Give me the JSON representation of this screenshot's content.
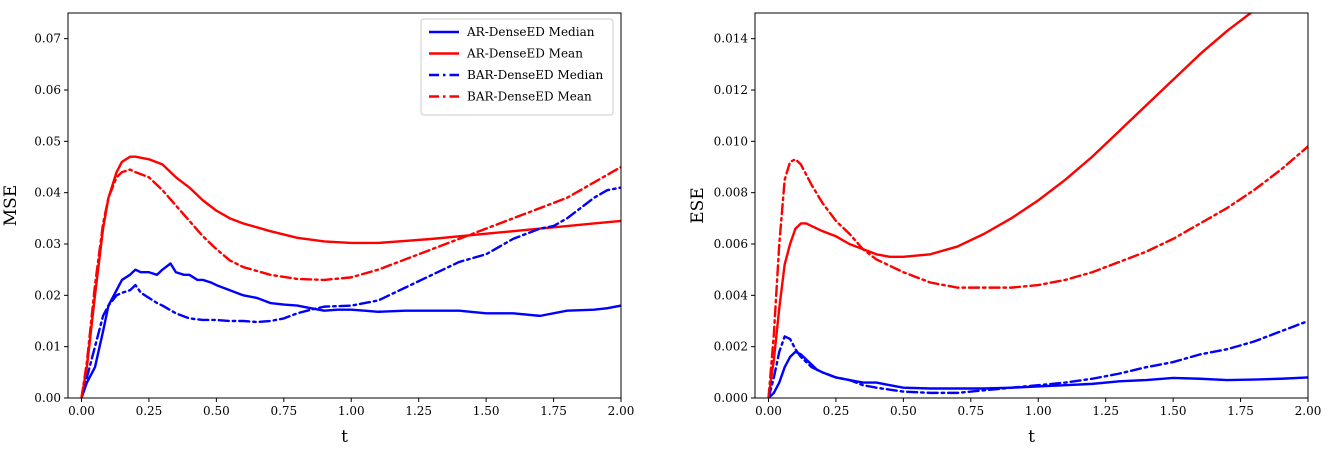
{
  "chart_data": [
    {
      "type": "line",
      "title": "",
      "xlabel": "t",
      "ylabel": "MSE",
      "xlim": [
        -0.05,
        2.0
      ],
      "ylim": [
        0.0,
        0.075
      ],
      "xticks": [
        "0.00",
        "0.25",
        "0.50",
        "0.75",
        "1.00",
        "1.25",
        "1.50",
        "1.75",
        "2.00"
      ],
      "yticks": [
        "0.00",
        "0.01",
        "0.02",
        "0.03",
        "0.04",
        "0.05",
        "0.06",
        "0.07"
      ],
      "legend_position": "top-right",
      "grid": false,
      "series": [
        {
          "name": "AR-DenseED Median",
          "color": "#0000ff",
          "style": "solid",
          "x": [
            0.0,
            0.02,
            0.05,
            0.08,
            0.1,
            0.13,
            0.15,
            0.18,
            0.2,
            0.22,
            0.25,
            0.28,
            0.3,
            0.33,
            0.35,
            0.38,
            0.4,
            0.43,
            0.45,
            0.48,
            0.5,
            0.55,
            0.6,
            0.65,
            0.7,
            0.75,
            0.8,
            0.85,
            0.9,
            0.95,
            1.0,
            1.05,
            1.1,
            1.2,
            1.3,
            1.4,
            1.5,
            1.6,
            1.7,
            1.8,
            1.9,
            1.95,
            2.0
          ],
          "y": [
            0.0,
            0.003,
            0.006,
            0.013,
            0.018,
            0.021,
            0.023,
            0.024,
            0.025,
            0.0245,
            0.0245,
            0.024,
            0.025,
            0.0262,
            0.0245,
            0.024,
            0.024,
            0.023,
            0.023,
            0.0225,
            0.022,
            0.021,
            0.02,
            0.0195,
            0.0185,
            0.0182,
            0.018,
            0.0175,
            0.017,
            0.0172,
            0.0172,
            0.017,
            0.0168,
            0.017,
            0.017,
            0.017,
            0.0165,
            0.0165,
            0.016,
            0.017,
            0.0172,
            0.0175,
            0.018
          ]
        },
        {
          "name": "AR-DenseED Mean",
          "color": "#ff0000",
          "style": "solid",
          "x": [
            0.0,
            0.02,
            0.05,
            0.08,
            0.1,
            0.13,
            0.15,
            0.18,
            0.2,
            0.25,
            0.3,
            0.35,
            0.4,
            0.45,
            0.5,
            0.55,
            0.6,
            0.7,
            0.8,
            0.9,
            1.0,
            1.1,
            1.2,
            1.3,
            1.4,
            1.5,
            1.6,
            1.7,
            1.8,
            1.9,
            2.0
          ],
          "y": [
            0.0,
            0.006,
            0.02,
            0.033,
            0.039,
            0.044,
            0.046,
            0.047,
            0.047,
            0.0465,
            0.0455,
            0.043,
            0.041,
            0.0385,
            0.0365,
            0.035,
            0.034,
            0.0325,
            0.0312,
            0.0305,
            0.0302,
            0.0302,
            0.0306,
            0.031,
            0.0315,
            0.032,
            0.0325,
            0.033,
            0.0335,
            0.034,
            0.0345
          ]
        },
        {
          "name": "BAR-DenseED Median",
          "color": "#0000ff",
          "style": "dashdot",
          "x": [
            0.0,
            0.02,
            0.05,
            0.08,
            0.1,
            0.13,
            0.15,
            0.18,
            0.2,
            0.22,
            0.25,
            0.28,
            0.3,
            0.35,
            0.4,
            0.45,
            0.5,
            0.55,
            0.6,
            0.65,
            0.7,
            0.75,
            0.8,
            0.85,
            0.9,
            1.0,
            1.1,
            1.2,
            1.3,
            1.4,
            1.5,
            1.6,
            1.7,
            1.75,
            1.8,
            1.85,
            1.9,
            1.95,
            2.0
          ],
          "y": [
            0.0,
            0.004,
            0.01,
            0.016,
            0.018,
            0.02,
            0.0205,
            0.021,
            0.022,
            0.0205,
            0.0195,
            0.0185,
            0.018,
            0.0165,
            0.0155,
            0.0152,
            0.0152,
            0.015,
            0.015,
            0.0148,
            0.015,
            0.0155,
            0.0165,
            0.0172,
            0.0178,
            0.018,
            0.019,
            0.0215,
            0.024,
            0.0265,
            0.028,
            0.031,
            0.033,
            0.0335,
            0.035,
            0.037,
            0.039,
            0.0405,
            0.041
          ]
        },
        {
          "name": "BAR-DenseED Mean",
          "color": "#ff0000",
          "style": "dashdot",
          "x": [
            0.0,
            0.02,
            0.05,
            0.08,
            0.1,
            0.13,
            0.15,
            0.18,
            0.2,
            0.25,
            0.3,
            0.35,
            0.4,
            0.45,
            0.5,
            0.55,
            0.6,
            0.7,
            0.8,
            0.9,
            1.0,
            1.1,
            1.2,
            1.3,
            1.4,
            1.5,
            1.6,
            1.7,
            1.8,
            1.9,
            2.0
          ],
          "y": [
            0.0,
            0.007,
            0.022,
            0.034,
            0.039,
            0.043,
            0.044,
            0.0445,
            0.044,
            0.043,
            0.0405,
            0.0375,
            0.0345,
            0.0315,
            0.029,
            0.0268,
            0.0255,
            0.024,
            0.0232,
            0.023,
            0.0235,
            0.025,
            0.027,
            0.029,
            0.031,
            0.033,
            0.035,
            0.037,
            0.039,
            0.042,
            0.045
          ]
        }
      ]
    },
    {
      "type": "line",
      "title": "",
      "xlabel": "t",
      "ylabel": "ESE",
      "xlim": [
        -0.05,
        2.0
      ],
      "ylim": [
        0.0,
        0.015
      ],
      "xticks": [
        "0.00",
        "0.25",
        "0.50",
        "0.75",
        "1.00",
        "1.25",
        "1.50",
        "1.75",
        "2.00"
      ],
      "yticks": [
        "0.000",
        "0.002",
        "0.004",
        "0.006",
        "0.008",
        "0.010",
        "0.012",
        "0.014"
      ],
      "grid": false,
      "series": [
        {
          "color": "#0000ff",
          "style": "solid",
          "x": [
            0.0,
            0.02,
            0.04,
            0.06,
            0.08,
            0.1,
            0.12,
            0.14,
            0.16,
            0.18,
            0.2,
            0.25,
            0.3,
            0.35,
            0.4,
            0.45,
            0.5,
            0.6,
            0.7,
            0.8,
            0.9,
            1.0,
            1.1,
            1.2,
            1.3,
            1.4,
            1.5,
            1.6,
            1.7,
            1.8,
            1.9,
            2.0
          ],
          "y": [
            0.0,
            0.0002,
            0.0006,
            0.0012,
            0.0016,
            0.0018,
            0.0017,
            0.0015,
            0.0013,
            0.0011,
            0.001,
            0.0008,
            0.0007,
            0.0006,
            0.0006,
            0.0005,
            0.0004,
            0.00037,
            0.00037,
            0.00037,
            0.0004,
            0.00045,
            0.0005,
            0.00055,
            0.00065,
            0.0007,
            0.00078,
            0.00075,
            0.0007,
            0.00072,
            0.00075,
            0.0008
          ]
        },
        {
          "color": "#ff0000",
          "style": "solid",
          "x": [
            0.0,
            0.02,
            0.04,
            0.06,
            0.08,
            0.1,
            0.12,
            0.14,
            0.16,
            0.2,
            0.25,
            0.3,
            0.35,
            0.4,
            0.45,
            0.5,
            0.6,
            0.7,
            0.8,
            0.9,
            1.0,
            1.1,
            1.2,
            1.3,
            1.4,
            1.5,
            1.6,
            1.7,
            1.75,
            1.8
          ],
          "y": [
            0.0,
            0.0015,
            0.0035,
            0.0052,
            0.006,
            0.0066,
            0.0068,
            0.0068,
            0.0067,
            0.0065,
            0.0063,
            0.006,
            0.0058,
            0.0056,
            0.0055,
            0.0055,
            0.0056,
            0.0059,
            0.0064,
            0.007,
            0.0077,
            0.0085,
            0.0094,
            0.0104,
            0.0114,
            0.0124,
            0.0134,
            0.0143,
            0.0147,
            0.0151
          ]
        },
        {
          "color": "#0000ff",
          "style": "dashdot",
          "x": [
            0.0,
            0.02,
            0.04,
            0.06,
            0.08,
            0.1,
            0.12,
            0.14,
            0.16,
            0.2,
            0.25,
            0.3,
            0.35,
            0.4,
            0.5,
            0.6,
            0.7,
            0.8,
            0.9,
            1.0,
            1.1,
            1.2,
            1.3,
            1.4,
            1.5,
            1.6,
            1.7,
            1.8,
            1.9,
            2.0
          ],
          "y": [
            0.0,
            0.0008,
            0.0018,
            0.0024,
            0.0023,
            0.0019,
            0.0016,
            0.0014,
            0.0012,
            0.001,
            0.0008,
            0.0007,
            0.0005,
            0.0004,
            0.00025,
            0.0002,
            0.0002,
            0.0003,
            0.0004,
            0.0005,
            0.0006,
            0.00075,
            0.00095,
            0.0012,
            0.0014,
            0.0017,
            0.0019,
            0.0022,
            0.0026,
            0.003
          ]
        },
        {
          "color": "#ff0000",
          "style": "dashdot",
          "x": [
            0.0,
            0.02,
            0.04,
            0.06,
            0.08,
            0.1,
            0.12,
            0.14,
            0.16,
            0.2,
            0.25,
            0.3,
            0.35,
            0.4,
            0.5,
            0.6,
            0.7,
            0.8,
            0.9,
            1.0,
            1.1,
            1.2,
            1.3,
            1.4,
            1.5,
            1.6,
            1.7,
            1.8,
            1.9,
            2.0
          ],
          "y": [
            0.0,
            0.0025,
            0.006,
            0.0085,
            0.0092,
            0.0093,
            0.0091,
            0.0087,
            0.0083,
            0.0076,
            0.0069,
            0.0064,
            0.0058,
            0.0054,
            0.0049,
            0.0045,
            0.0043,
            0.0043,
            0.0043,
            0.0044,
            0.0046,
            0.0049,
            0.0053,
            0.0057,
            0.0062,
            0.0068,
            0.0074,
            0.0081,
            0.0089,
            0.0098
          ]
        }
      ]
    }
  ]
}
